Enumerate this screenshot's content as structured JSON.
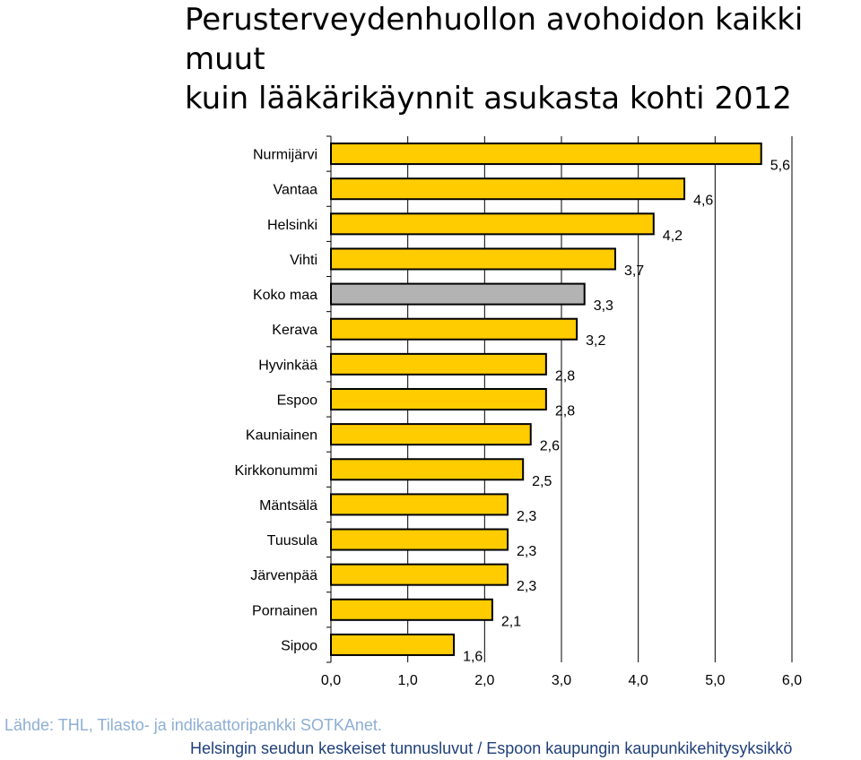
{
  "chart_data": {
    "type": "bar",
    "orientation": "horizontal",
    "title": "Perusterveydenhuollon avohoidon kaikki muut kuin lääkärikäynnit asukasta kohti 2012",
    "title_lines": [
      "Perusterveydenhuollon avohoidon kaikki muut",
      "kuin lääkärikäynnit asukasta kohti 2012"
    ],
    "categories": [
      "Nurmijärvi",
      "Vantaa",
      "Helsinki",
      "Vihti",
      "Koko maa",
      "Kerava",
      "Hyvinkää",
      "Espoo",
      "Kauniainen",
      "Kirkkonummi",
      "Mäntsälä",
      "Tuusula",
      "Järvenpää",
      "Pornainen",
      "Sipoo"
    ],
    "values": [
      5.6,
      4.6,
      4.2,
      3.7,
      3.3,
      3.2,
      2.8,
      2.8,
      2.6,
      2.5,
      2.3,
      2.3,
      2.3,
      2.1,
      1.6
    ],
    "value_labels": [
      "5,6",
      "4,6",
      "4,2",
      "3,7",
      "3,3",
      "3,2",
      "2,8",
      "2,8",
      "2,6",
      "2,5",
      "2,3",
      "2,3",
      "2,3",
      "2,1",
      "1,6"
    ],
    "xlim": [
      0,
      6
    ],
    "xticks": [
      "0,0",
      "1,0",
      "2,0",
      "3,0",
      "4,0",
      "5,0",
      "6,0"
    ],
    "grid": true,
    "colors": {
      "bar": "#ffcc00",
      "highlight_bar": "#b3b3b3",
      "highlight_category": "Koko maa",
      "bar_stroke": "#000000",
      "grid": "#000000"
    }
  },
  "footer": {
    "source": "Lähde: THL, Tilasto- ja indikaattoripankki SOTKAnet.",
    "credit": "Helsingin seudun keskeiset tunnusluvut / Espoon kaupungin kaupunkikehitysyksikkö"
  }
}
